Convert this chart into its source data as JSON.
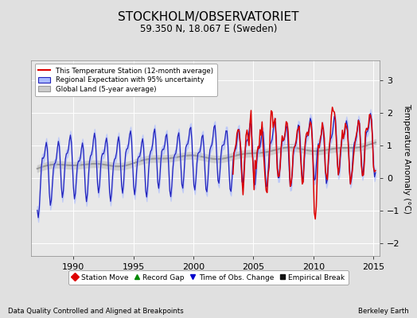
{
  "title": "STOCKHOLM/OBSERVATORIET",
  "subtitle": "59.350 N, 18.067 E (Sweden)",
  "ylabel": "Temperature Anomaly (°C)",
  "xlabel_left": "Data Quality Controlled and Aligned at Breakpoints",
  "xlabel_right": "Berkeley Earth",
  "ylim": [
    -2.4,
    3.6
  ],
  "xlim": [
    1986.5,
    2015.5
  ],
  "xticks": [
    1990,
    1995,
    2000,
    2005,
    2010,
    2015
  ],
  "yticks": [
    -2,
    -1,
    0,
    1,
    2,
    3
  ],
  "bg_color": "#e0e0e0",
  "plot_bg_color": "#e8e8e8",
  "grid_color": "#ffffff",
  "station_color": "#dd0000",
  "regional_color": "#2222bb",
  "regional_fill": "#aabbff",
  "global_color": "#999999",
  "global_fill": "#cccccc",
  "legend_items": [
    {
      "label": "This Temperature Station (12-month average)",
      "color": "#dd0000"
    },
    {
      "label": "Regional Expectation with 95% uncertainty",
      "color": "#2222bb",
      "fill": "#aabbff"
    },
    {
      "label": "Global Land (5-year average)",
      "color": "#999999",
      "fill": "#cccccc"
    }
  ],
  "marker_items": [
    {
      "label": "Station Move",
      "color": "#dd0000",
      "marker": "D"
    },
    {
      "label": "Record Gap",
      "color": "#008800",
      "marker": "^"
    },
    {
      "label": "Time of Obs. Change",
      "color": "#0000cc",
      "marker": "v"
    },
    {
      "label": "Empirical Break",
      "color": "#111111",
      "marker": "s"
    }
  ]
}
